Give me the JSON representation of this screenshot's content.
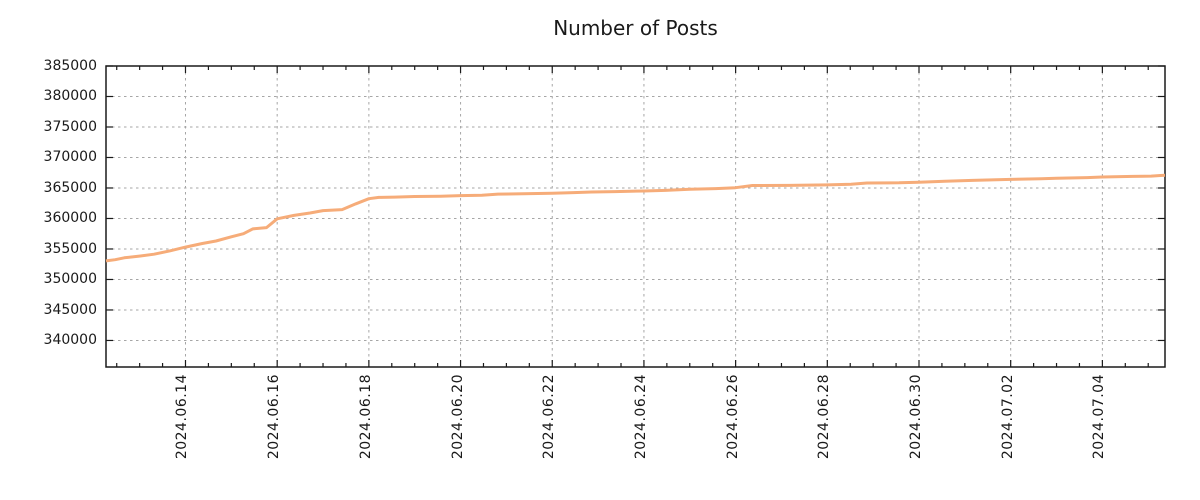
{
  "title": "Number of Posts",
  "colors": {
    "background": "#ffffff",
    "line": "#f6ac79",
    "grid": "#a6a6a6",
    "axis": "#1a1a1a",
    "text": "#1a1a1a"
  },
  "chart_data": {
    "type": "line",
    "title": "Number of Posts",
    "xlabel": "",
    "ylabel": "",
    "legend": null,
    "grid": true,
    "ylim": [
      335650,
      385000
    ],
    "y_ticks": [
      340000,
      345000,
      350000,
      355000,
      360000,
      365000,
      370000,
      375000,
      380000,
      385000
    ],
    "x_range_days": [
      0,
      23.1
    ],
    "x_major_ticks": [
      {
        "label": "2024.06.14",
        "t": 1.734
      },
      {
        "label": "2024.06.16",
        "t": 3.734
      },
      {
        "label": "2024.06.18",
        "t": 5.734
      },
      {
        "label": "2024.06.20",
        "t": 7.734
      },
      {
        "label": "2024.06.22",
        "t": 9.734
      },
      {
        "label": "2024.06.24",
        "t": 11.734
      },
      {
        "label": "2024.06.26",
        "t": 13.734
      },
      {
        "label": "2024.06.28",
        "t": 15.734
      },
      {
        "label": "2024.06.30",
        "t": 17.734
      },
      {
        "label": "2024.07.02",
        "t": 19.734
      },
      {
        "label": "2024.07.04",
        "t": 21.734
      }
    ],
    "x_minor_interval_days": 0.5,
    "series": [
      {
        "name": "Number of Posts",
        "color": "#f6ac79",
        "points": [
          [
            0.0,
            353050
          ],
          [
            0.2,
            353250
          ],
          [
            0.4,
            353550
          ],
          [
            0.75,
            353850
          ],
          [
            1.05,
            354150
          ],
          [
            1.4,
            354700
          ],
          [
            1.734,
            355300
          ],
          [
            2.1,
            355900
          ],
          [
            2.4,
            356300
          ],
          [
            2.734,
            357000
          ],
          [
            3.0,
            357500
          ],
          [
            3.2,
            358300
          ],
          [
            3.5,
            358500
          ],
          [
            3.734,
            359950
          ],
          [
            4.1,
            360500
          ],
          [
            4.45,
            360900
          ],
          [
            4.734,
            361300
          ],
          [
            5.15,
            361450
          ],
          [
            5.45,
            362400
          ],
          [
            5.734,
            363250
          ],
          [
            5.95,
            363450
          ],
          [
            6.3,
            363500
          ],
          [
            6.734,
            363600
          ],
          [
            7.3,
            363650
          ],
          [
            7.734,
            363750
          ],
          [
            8.2,
            363800
          ],
          [
            8.55,
            364000
          ],
          [
            9.1,
            364050
          ],
          [
            9.734,
            364150
          ],
          [
            10.2,
            364250
          ],
          [
            10.6,
            364350
          ],
          [
            11.1,
            364400
          ],
          [
            11.734,
            364500
          ],
          [
            12.2,
            364600
          ],
          [
            12.734,
            364800
          ],
          [
            13.3,
            364900
          ],
          [
            13.734,
            365050
          ],
          [
            14.1,
            365400
          ],
          [
            14.9,
            365430
          ],
          [
            15.734,
            365500
          ],
          [
            16.25,
            365600
          ],
          [
            16.6,
            365820
          ],
          [
            17.3,
            365850
          ],
          [
            17.734,
            365950
          ],
          [
            18.3,
            366100
          ],
          [
            18.9,
            366250
          ],
          [
            19.734,
            366400
          ],
          [
            20.4,
            366500
          ],
          [
            20.734,
            366600
          ],
          [
            21.4,
            366700
          ],
          [
            21.734,
            366800
          ],
          [
            22.4,
            366900
          ],
          [
            22.8,
            366950
          ],
          [
            23.0,
            367050
          ],
          [
            23.1,
            367080
          ]
        ]
      }
    ]
  }
}
